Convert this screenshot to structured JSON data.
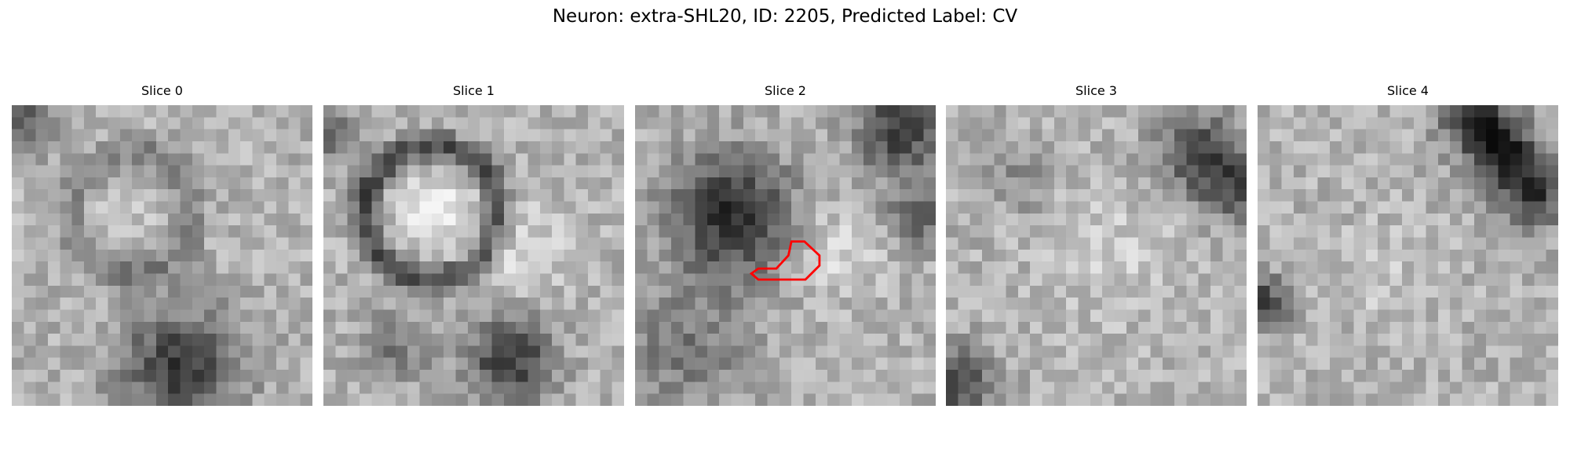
{
  "title": "Neuron: extra-SHL20, ID: 2205, Predicted Label: CV",
  "panels": [
    {
      "label": "Slice 0"
    },
    {
      "label": "Slice 1"
    },
    {
      "label": "Slice 2"
    },
    {
      "label": "Slice 3"
    },
    {
      "label": "Slice 4"
    }
  ]
}
